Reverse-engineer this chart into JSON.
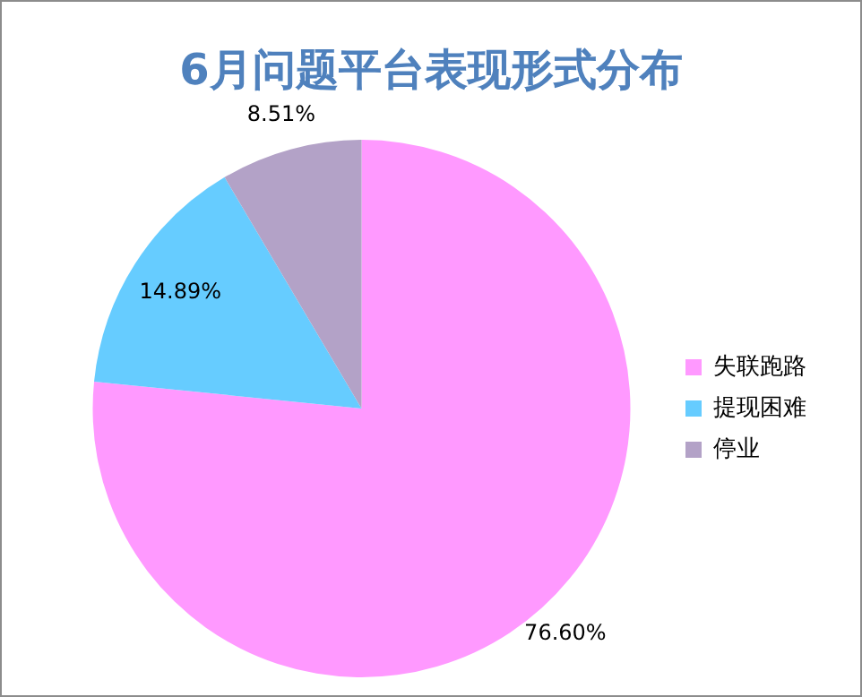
{
  "chart_data": {
    "type": "pie",
    "title": "6月问题平台表现形式分布",
    "categories": [
      "失联跑路",
      "提现困难",
      "停业"
    ],
    "values": [
      76.6,
      14.89,
      8.51
    ],
    "value_labels": [
      "76.60%",
      "14.89%",
      "8.51%"
    ],
    "colors": [
      "#ff99ff",
      "#66ccff",
      "#b3a2c7"
    ],
    "legend": "right"
  }
}
